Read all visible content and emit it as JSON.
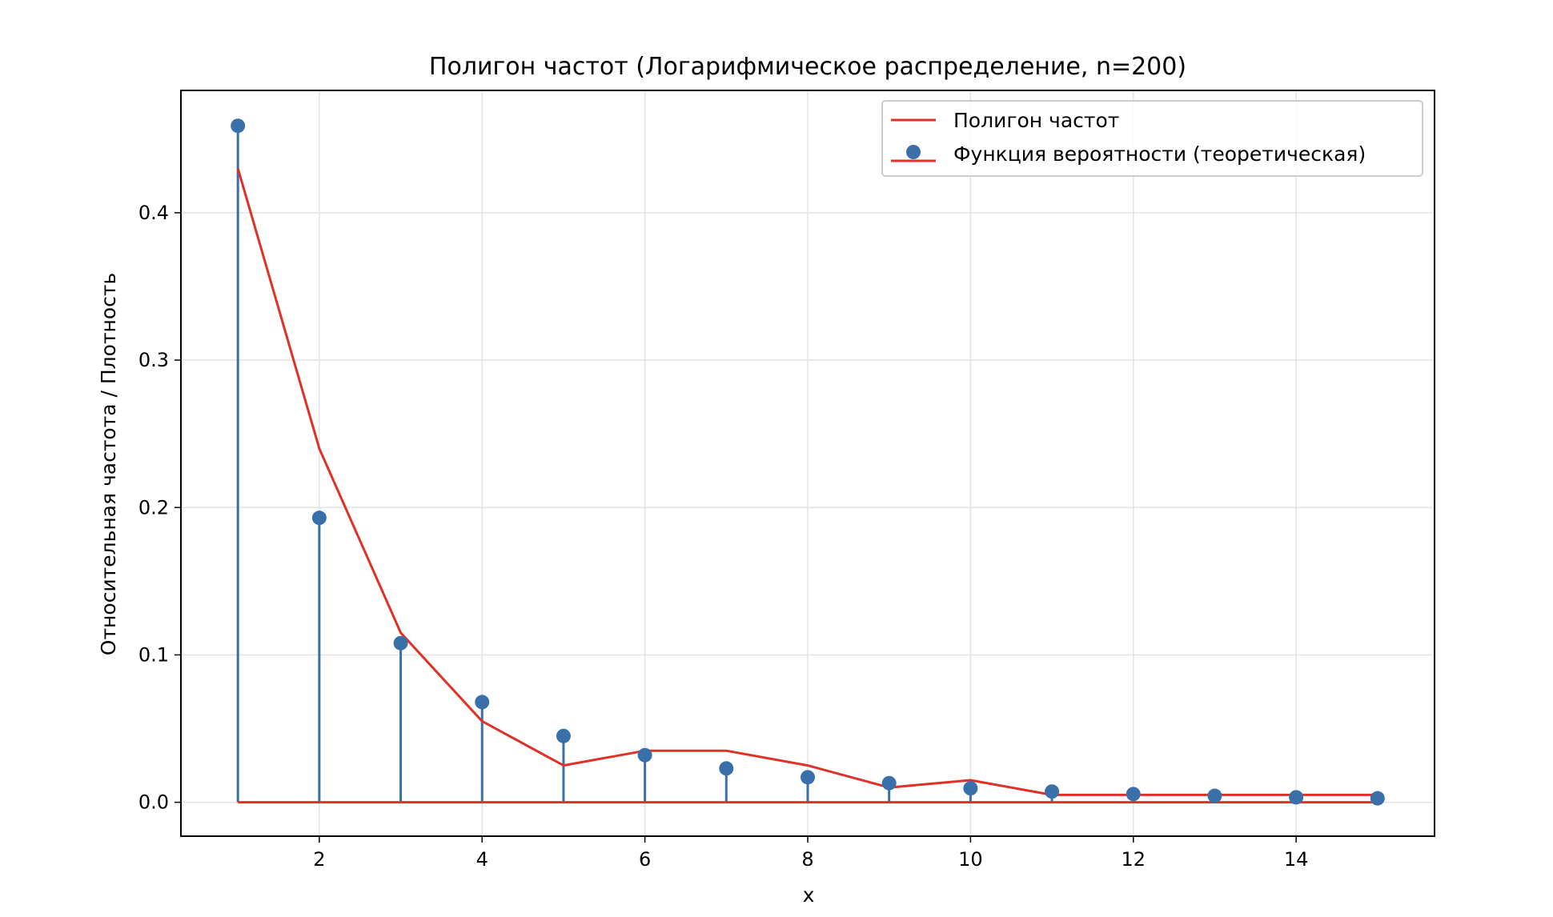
{
  "chart_data": {
    "type": "line",
    "title": "Полигон частот (Логарифмическое распределение, n=200)",
    "xlabel": "x",
    "ylabel": "Относительная частота / Плотность",
    "xlim": [
      0.3,
      15.7
    ],
    "ylim": [
      -0.023,
      0.483
    ],
    "x_ticks": [
      2,
      4,
      6,
      8,
      10,
      12,
      14
    ],
    "y_ticks": [
      0.0,
      0.1,
      0.2,
      0.3,
      0.4
    ],
    "x_tick_labels": [
      "2",
      "4",
      "6",
      "8",
      "10",
      "12",
      "14"
    ],
    "y_tick_labels": [
      "0.0",
      "0.1",
      "0.2",
      "0.3",
      "0.4"
    ],
    "grid": true,
    "legend_position": "top-right",
    "x": [
      1,
      2,
      3,
      4,
      5,
      6,
      7,
      8,
      9,
      10,
      11,
      12,
      13,
      14,
      15
    ],
    "series": [
      {
        "name": "Полигон частот",
        "kind": "line",
        "color": "#e03128",
        "values": [
          0.43,
          0.24,
          0.115,
          0.055,
          0.025,
          0.035,
          0.035,
          0.025,
          0.01,
          0.015,
          0.005,
          0.005,
          0.005,
          0.005,
          0.005
        ]
      },
      {
        "name": "Функция вероятности (теоретическая)",
        "kind": "stem",
        "color": "#3a70aa",
        "baseline_color": "#e03128",
        "values": [
          0.459,
          0.193,
          0.108,
          0.068,
          0.045,
          0.032,
          0.023,
          0.017,
          0.013,
          0.0095,
          0.0073,
          0.0056,
          0.0044,
          0.0034,
          0.0027
        ]
      }
    ]
  }
}
